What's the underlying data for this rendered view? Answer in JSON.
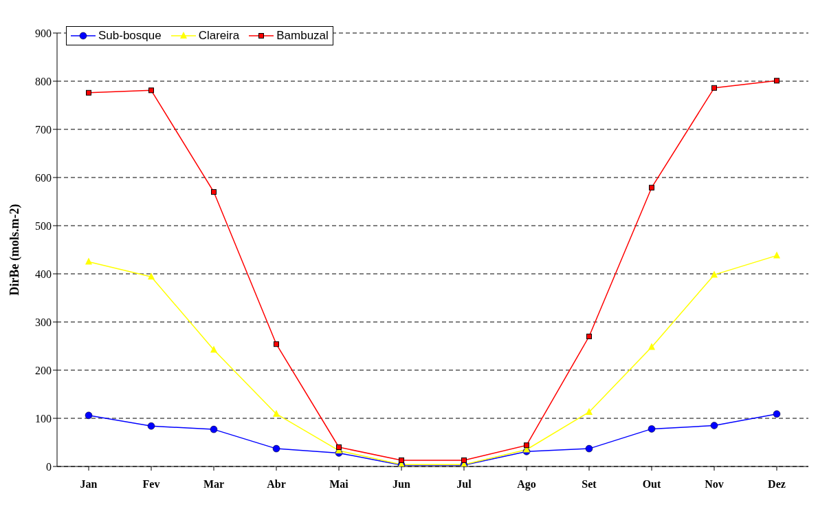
{
  "chart_data": {
    "type": "line",
    "ylabel": "DirBe (mols.m-2)",
    "categories": [
      "Jan",
      "Fev",
      "Mar",
      "Abr",
      "Mai",
      "Jun",
      "Jul",
      "Ago",
      "Set",
      "Out",
      "Nov",
      "Dez"
    ],
    "series": [
      {
        "name": "Sub-bosque",
        "color": "#0000ff",
        "marker": "circle",
        "values": [
          106,
          84,
          77,
          37,
          28,
          3,
          3,
          31,
          37,
          78,
          85,
          109
        ]
      },
      {
        "name": "Clareira",
        "color": "#ffff00",
        "marker": "triangle",
        "values": [
          425,
          394,
          242,
          109,
          33,
          4,
          4,
          35,
          113,
          248,
          398,
          438
        ]
      },
      {
        "name": "Bambuzal",
        "color": "#ff0000",
        "marker": "square",
        "values": [
          776,
          781,
          570,
          254,
          40,
          13,
          13,
          44,
          270,
          579,
          786,
          801
        ]
      }
    ],
    "ylim": [
      0,
      900
    ],
    "yticks": [
      0,
      100,
      200,
      300,
      400,
      500,
      600,
      700,
      800,
      900
    ],
    "grid": "y",
    "legend": "top left",
    "line_style": "solid"
  }
}
